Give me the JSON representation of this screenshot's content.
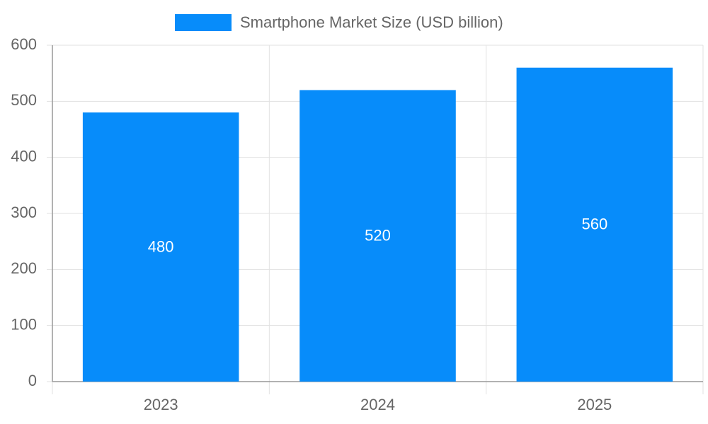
{
  "chart_data": {
    "type": "bar",
    "categories": [
      "2023",
      "2024",
      "2025"
    ],
    "series": [
      {
        "name": "Smartphone Market Size (USD billion)",
        "color": "#078cfa",
        "values": [
          480,
          520,
          560
        ]
      }
    ],
    "ylim": [
      0,
      600
    ],
    "yticks": [
      0,
      100,
      200,
      300,
      400,
      500,
      600
    ],
    "grid": true,
    "legend": "top",
    "data_labels": true
  }
}
